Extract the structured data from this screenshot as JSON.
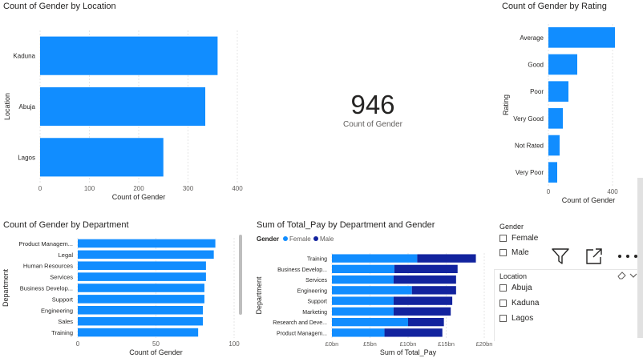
{
  "colors": {
    "primary": "#118dff",
    "female": "#118dff",
    "male": "#12239e",
    "grid": "#e6e6e6",
    "text": "#605e5c"
  },
  "icons": {
    "filter": "filter-icon",
    "focus": "focus-mode-icon",
    "more": "more-options-icon",
    "eraser": "eraser-icon",
    "chevron": "chevron-down-icon"
  },
  "kpi": {
    "value": "946",
    "label": "Count of Gender"
  },
  "charts": {
    "location": {
      "type": "bar",
      "orientation": "horizontal",
      "title": "Count of Gender by Location",
      "categories": [
        "Kaduna",
        "Abuja",
        "Lagos"
      ],
      "values": [
        360,
        335,
        250
      ],
      "xlabel": "Count of Gender",
      "ylabel": "Location",
      "xlim": [
        0,
        400
      ],
      "xticks": [
        "0",
        "100",
        "200",
        "300",
        "400"
      ]
    },
    "rating": {
      "type": "bar",
      "orientation": "horizontal",
      "title": "Count of Gender by Rating",
      "categories": [
        "Average",
        "Good",
        "Poor",
        "Very Good",
        "Not Rated",
        "Very Poor"
      ],
      "values": [
        415,
        180,
        125,
        90,
        70,
        55
      ],
      "xlabel": "Count of Gender",
      "ylabel": "Rating",
      "xlim": [
        0,
        500
      ],
      "xticks": [
        "0",
        "400"
      ],
      "xtick_values": [
        0,
        400
      ]
    },
    "department": {
      "type": "bar",
      "orientation": "horizontal",
      "title": "Count of Gender by Department",
      "categories": [
        "Product Managem...",
        "Legal",
        "Human Resources",
        "Services",
        "Business Develop...",
        "Support",
        "Engineering",
        "Sales",
        "Training"
      ],
      "values": [
        88,
        87,
        82,
        82,
        81,
        81,
        80,
        80,
        77
      ],
      "xlabel": "Count of Gender",
      "ylabel": "Department",
      "xlim": [
        0,
        100
      ],
      "xticks": [
        "0",
        "50",
        "100"
      ],
      "xtick_values": [
        0,
        50,
        100
      ]
    },
    "pay": {
      "type": "bar",
      "orientation": "horizontal",
      "stacked": true,
      "title": "Sum of Total_Pay by Department and Gender",
      "legend_title": "Gender",
      "categories": [
        "Training",
        "Business Develop...",
        "Services",
        "Engineering",
        "Support",
        "Marketing",
        "Research and Deve...",
        "Product Managem..."
      ],
      "series": [
        {
          "name": "Female",
          "values": [
            11.2,
            8.2,
            8.1,
            10.5,
            8.1,
            8.1,
            10.0,
            6.9
          ]
        },
        {
          "name": "Male",
          "values": [
            7.7,
            8.3,
            8.2,
            5.8,
            7.7,
            7.5,
            4.7,
            7.6
          ]
        }
      ],
      "xlabel": "Sum of Total_Pay",
      "ylabel": "Department",
      "xlim": [
        0,
        20
      ],
      "xticks": [
        "£0bn",
        "£5bn",
        "£10bn",
        "£15bn",
        "£20bn"
      ],
      "xtick_values": [
        0,
        5,
        10,
        15,
        20
      ]
    }
  },
  "slicers": {
    "gender": {
      "title": "Gender",
      "options": [
        "Female",
        "Male"
      ]
    },
    "location": {
      "title": "Location",
      "options": [
        "Abuja",
        "Kaduna",
        "Lagos"
      ]
    }
  }
}
